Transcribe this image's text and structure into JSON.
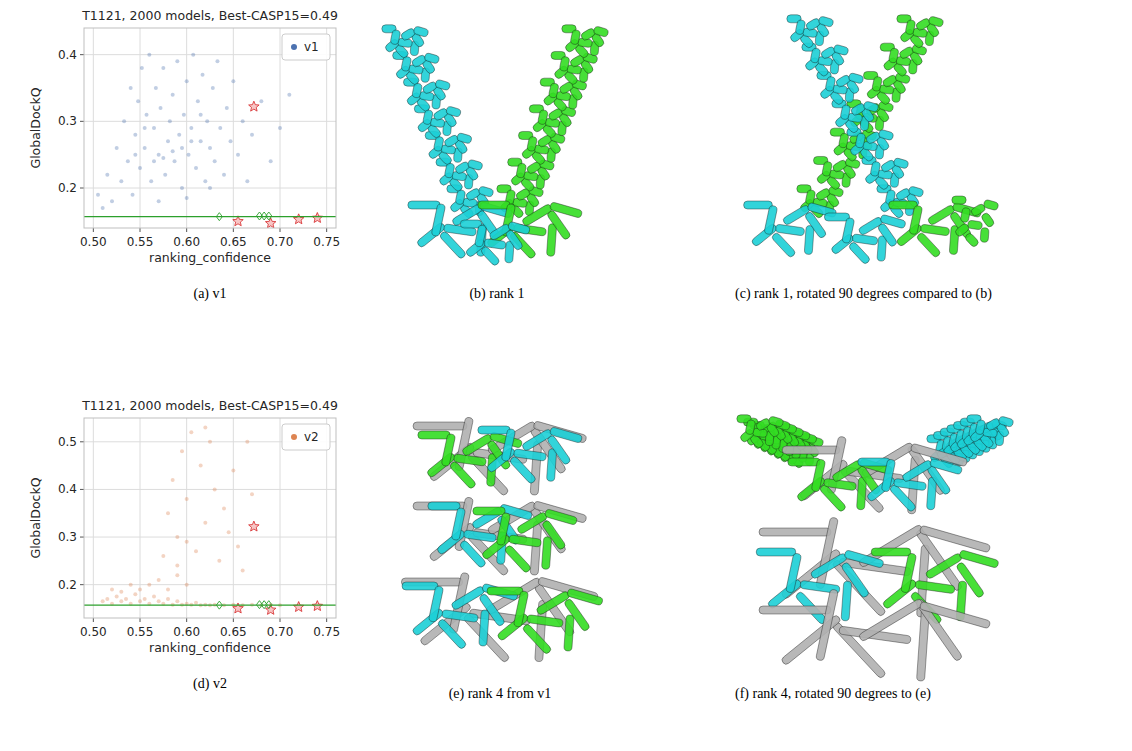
{
  "chart_data": [
    {
      "type": "scatter",
      "title": "T1121, 2000 models, Best-CASP15=0.49",
      "x_label": "ranking_confidence",
      "y_label": "GlobalDockQ",
      "xlim": [
        0.49,
        0.76
      ],
      "ylim": [
        0.14,
        0.44
      ],
      "xticks": [
        {
          "value": 0.5,
          "label": "0.50"
        },
        {
          "value": 0.55,
          "label": "0.55"
        },
        {
          "value": 0.6,
          "label": "0.60"
        },
        {
          "value": 0.65,
          "label": "0.65"
        },
        {
          "value": 0.7,
          "label": "0.70"
        },
        {
          "value": 0.75,
          "label": "0.75"
        }
      ],
      "yticks": [
        0.2,
        0.3,
        0.4
      ],
      "grid": true,
      "legend": "upper right",
      "series": [
        {
          "name": "v1",
          "color": "#4c72b0",
          "marker": "circle",
          "x": [
            0.505,
            0.51,
            0.515,
            0.52,
            0.525,
            0.53,
            0.533,
            0.537,
            0.54,
            0.542,
            0.545,
            0.548,
            0.55,
            0.552,
            0.555,
            0.557,
            0.56,
            0.562,
            0.565,
            0.567,
            0.57,
            0.572,
            0.575,
            0.577,
            0.58,
            0.582,
            0.585,
            0.587,
            0.59,
            0.592,
            0.595,
            0.597,
            0.6,
            0.602,
            0.605,
            0.607,
            0.61,
            0.612,
            0.615,
            0.617,
            0.62,
            0.622,
            0.625,
            0.628,
            0.63,
            0.633,
            0.636,
            0.64,
            0.643,
            0.647,
            0.65,
            0.655,
            0.66,
            0.665,
            0.67,
            0.68,
            0.69,
            0.7,
            0.71,
            0.575,
            0.585,
            0.565,
            0.595,
            0.605,
            0.555,
            0.545,
            0.615,
            0.625,
            0.57,
            0.6
          ],
          "values": [
            0.19,
            0.17,
            0.22,
            0.18,
            0.26,
            0.21,
            0.3,
            0.24,
            0.35,
            0.19,
            0.28,
            0.33,
            0.23,
            0.38,
            0.26,
            0.31,
            0.4,
            0.21,
            0.29,
            0.35,
            0.25,
            0.32,
            0.38,
            0.22,
            0.27,
            0.3,
            0.34,
            0.24,
            0.39,
            0.28,
            0.2,
            0.31,
            0.36,
            0.25,
            0.29,
            0.4,
            0.23,
            0.33,
            0.27,
            0.37,
            0.21,
            0.3,
            0.26,
            0.35,
            0.24,
            0.39,
            0.29,
            0.22,
            0.32,
            0.27,
            0.36,
            0.25,
            0.3,
            0.21,
            0.28,
            0.33,
            0.24,
            0.29,
            0.34,
            0.245,
            0.255,
            0.24,
            0.26,
            0.27,
            0.29,
            0.25,
            0.31,
            0.2,
            0.18,
            0.185
          ]
        },
        {
          "color": "#d62728",
          "marker": "star",
          "x": [
            0.672,
            0.655,
            0.69,
            0.72,
            0.74
          ],
          "values": [
            0.322,
            0.15,
            0.147,
            0.153,
            0.155
          ]
        },
        {
          "color": "#2ca02c",
          "marker": "diamond",
          "x": [
            0.635,
            0.678,
            0.683,
            0.688
          ],
          "values": [
            0.157,
            0.158,
            0.158,
            0.158
          ]
        },
        {
          "type": "line",
          "color": "#2ca02c",
          "line_style": "solid",
          "x": [
            0.49,
            0.76
          ],
          "values": [
            0.157,
            0.157
          ]
        }
      ]
    },
    {
      "type": "scatter",
      "title": "T1121, 2000 models, Best-CASP15=0.49",
      "x_label": "ranking_confidence",
      "y_label": "GlobalDockQ",
      "xlim": [
        0.49,
        0.76
      ],
      "ylim": [
        0.13,
        0.55
      ],
      "xticks": [
        {
          "value": 0.5,
          "label": "0.50"
        },
        {
          "value": 0.55,
          "label": "0.55"
        },
        {
          "value": 0.6,
          "label": "0.60"
        },
        {
          "value": 0.65,
          "label": "0.65"
        },
        {
          "value": 0.7,
          "label": "0.70"
        },
        {
          "value": 0.75,
          "label": "0.75"
        }
      ],
      "yticks": [
        0.2,
        0.3,
        0.4,
        0.5
      ],
      "grid": true,
      "legend": "upper right",
      "series": [
        {
          "name": "v2",
          "color": "#dd8452",
          "marker": "circle",
          "x": [
            0.51,
            0.515,
            0.52,
            0.525,
            0.53,
            0.535,
            0.54,
            0.545,
            0.55,
            0.555,
            0.56,
            0.565,
            0.57,
            0.575,
            0.58,
            0.585,
            0.59,
            0.595,
            0.6,
            0.605,
            0.61,
            0.615,
            0.62,
            0.625,
            0.63,
            0.64,
            0.65,
            0.66,
            0.67,
            0.68,
            0.69,
            0.7,
            0.52,
            0.53,
            0.54,
            0.55,
            0.56,
            0.57,
            0.58,
            0.59,
            0.6,
            0.575,
            0.58,
            0.585,
            0.59,
            0.595,
            0.6,
            0.605,
            0.61,
            0.615,
            0.62,
            0.625,
            0.63,
            0.635,
            0.64,
            0.645,
            0.65,
            0.655,
            0.66,
            0.665,
            0.67,
            0.62,
            0.6,
            0.59
          ],
          "values": [
            0.165,
            0.17,
            0.16,
            0.175,
            0.165,
            0.17,
            0.16,
            0.18,
            0.165,
            0.17,
            0.16,
            0.175,
            0.165,
            0.16,
            0.17,
            0.158,
            0.165,
            0.158,
            0.16,
            0.158,
            0.162,
            0.157,
            0.158,
            0.157,
            0.158,
            0.157,
            0.158,
            0.157,
            0.158,
            0.157,
            0.158,
            0.157,
            0.19,
            0.185,
            0.2,
            0.19,
            0.2,
            0.21,
            0.19,
            0.22,
            0.2,
            0.26,
            0.35,
            0.42,
            0.3,
            0.48,
            0.38,
            0.52,
            0.27,
            0.45,
            0.33,
            0.5,
            0.4,
            0.25,
            0.36,
            0.31,
            0.44,
            0.28,
            0.23,
            0.5,
            0.39,
            0.53,
            0.29,
            0.24
          ]
        },
        {
          "color": "#d62728",
          "marker": "star",
          "x": [
            0.672,
            0.655,
            0.69,
            0.72,
            0.74
          ],
          "values": [
            0.322,
            0.15,
            0.147,
            0.153,
            0.155
          ]
        },
        {
          "color": "#2ca02c",
          "marker": "diamond",
          "x": [
            0.635,
            0.678,
            0.683,
            0.688
          ],
          "values": [
            0.157,
            0.158,
            0.158,
            0.158
          ]
        },
        {
          "type": "line",
          "color": "#2ca02c",
          "line_style": "solid",
          "x": [
            0.49,
            0.76
          ],
          "values": [
            0.157,
            0.157
          ]
        }
      ]
    }
  ],
  "captions": [
    "(a) v1",
    "(b) rank 1",
    "(c) rank 1, rotated 90 degrees compared to (b)",
    "(d) v2",
    "(e) rank 4 from v1",
    "(f) rank 4, rotated 90 degrees to (e)"
  ]
}
